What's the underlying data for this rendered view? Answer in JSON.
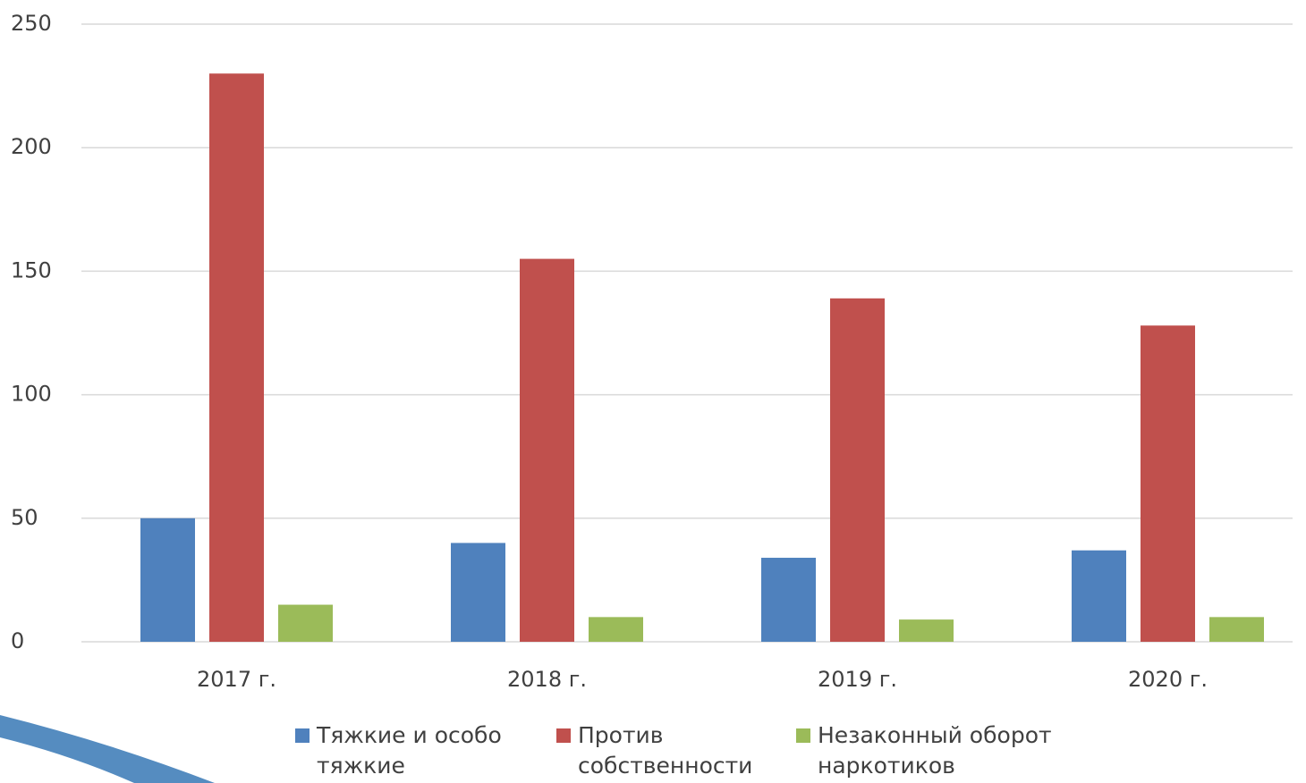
{
  "chart_data": {
    "type": "bar",
    "categories": [
      "2017 г.",
      "2018 г.",
      "2019 г.",
      "2020 г."
    ],
    "series": [
      {
        "name": "Тяжкие и особо тяжкие",
        "color": "#4f81bd",
        "values": [
          50,
          40,
          34,
          37
        ]
      },
      {
        "name": "Против собственности",
        "color": "#c0504d",
        "values": [
          230,
          155,
          139,
          128
        ]
      },
      {
        "name": "Незаконный оборот наркотиков",
        "color": "#9bbb59",
        "values": [
          15,
          10,
          9,
          10
        ]
      }
    ],
    "ylim": [
      0,
      250
    ],
    "yticks": [
      0,
      50,
      100,
      150,
      200,
      250
    ],
    "grid": true,
    "legend": "bottom"
  }
}
